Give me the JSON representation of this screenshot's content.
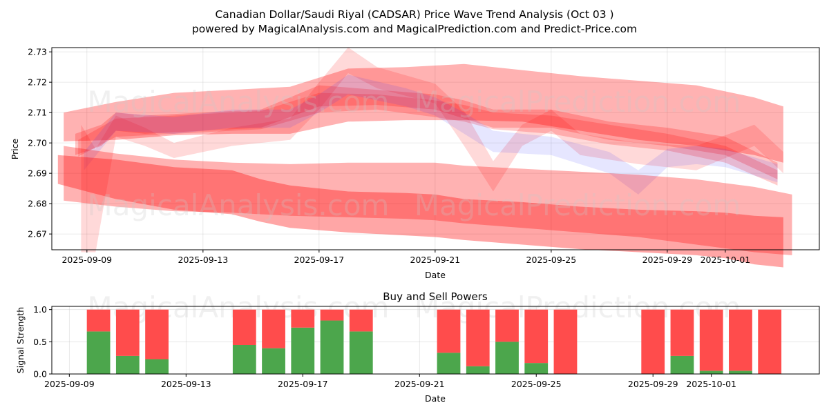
{
  "figure": {
    "title_line1": "Canadian Dollar/Saudi Riyal (CADSAR) Price Wave Trend Analysis (Oct 03 )",
    "title_line2": "powered by MagicalAnalysis.com and MagicalPrediction.com and Predict-Price.com",
    "watermarks": [
      "MagicalAnalysis.com",
      "MagicalPrediction.com"
    ]
  },
  "chart_data": [
    {
      "type": "area",
      "name": "price-wave-chart",
      "title": "",
      "xlabel": "Date",
      "ylabel": "Price",
      "ylim": [
        2.6648,
        2.7314
      ],
      "xlim_days_from_start": [
        -1.21,
        25.24
      ],
      "start_date": "2025-09-09",
      "yticks": [
        2.67,
        2.68,
        2.69,
        2.7,
        2.71,
        2.72,
        2.73
      ],
      "ytick_labels": [
        "2.67",
        "2.68",
        "2.69",
        "2.70",
        "2.71",
        "2.72",
        "2.73"
      ],
      "xtick_days": [
        0,
        4,
        8,
        12,
        16,
        20,
        22
      ],
      "xtick_labels": [
        "2025-09-09",
        "2025-09-13",
        "2025-09-17",
        "2025-09-21",
        "2025-09-25",
        "2025-09-29",
        "2025-10-01"
      ],
      "grid": true,
      "colors": {
        "red_band": "#ff0000",
        "blue_band": "#3333ff"
      },
      "series": [
        {
          "name": "upper-wide-band",
          "color": "red",
          "opacity": 0.3,
          "x": [
            -0.8,
            1,
            3,
            5,
            7,
            9,
            11,
            13,
            15,
            17,
            19,
            21,
            23,
            24
          ],
          "upper": [
            2.71,
            2.7135,
            2.7165,
            2.7175,
            2.7185,
            2.7245,
            2.725,
            2.726,
            2.724,
            2.722,
            2.7205,
            2.719,
            2.715,
            2.712
          ],
          "lower": [
            2.7005,
            2.701,
            2.7025,
            2.703,
            2.703,
            2.707,
            2.7075,
            2.7075,
            2.707,
            2.704,
            2.701,
            2.699,
            2.696,
            2.6935
          ]
        },
        {
          "name": "core-band-1",
          "color": "red",
          "opacity": 0.22,
          "x": [
            -0.4,
            0.5,
            1,
            2,
            4,
            6,
            8,
            10,
            12,
            13,
            14,
            16,
            18,
            20,
            22,
            23.8
          ],
          "upper": [
            2.703,
            2.706,
            2.71,
            2.709,
            2.71,
            2.711,
            2.719,
            2.7175,
            2.716,
            2.714,
            2.711,
            2.711,
            2.707,
            2.705,
            2.702,
            2.6935
          ],
          "lower": [
            2.696,
            2.699,
            2.704,
            2.703,
            2.704,
            2.705,
            2.712,
            2.7125,
            2.711,
            2.708,
            2.705,
            2.705,
            2.701,
            2.699,
            2.696,
            2.688
          ]
        },
        {
          "name": "core-band-2",
          "color": "red",
          "opacity": 0.2,
          "x": [
            -0.3,
            1,
            2,
            4,
            6,
            8,
            10,
            12,
            13,
            14,
            16,
            18,
            20,
            22,
            23.8
          ],
          "upper": [
            2.701,
            2.708,
            2.7085,
            2.7095,
            2.7105,
            2.7165,
            2.716,
            2.714,
            2.7125,
            2.71,
            2.709,
            2.706,
            2.703,
            2.699,
            2.691
          ],
          "lower": [
            2.6955,
            2.702,
            2.7025,
            2.7035,
            2.7045,
            2.71,
            2.711,
            2.7085,
            2.707,
            2.7045,
            2.703,
            2.6995,
            2.6975,
            2.6935,
            2.686
          ]
        },
        {
          "name": "volatile-band",
          "color": "red",
          "opacity": 0.15,
          "x": [
            -0.2,
            0.3,
            1,
            2,
            3,
            5,
            7,
            8,
            9,
            10,
            12,
            13,
            14,
            15,
            16,
            17,
            19,
            21,
            23,
            24
          ],
          "upper": [
            2.706,
            2.698,
            2.709,
            2.705,
            2.7,
            2.705,
            2.708,
            2.72,
            2.7315,
            2.725,
            2.7195,
            2.7105,
            2.694,
            2.706,
            2.711,
            2.703,
            2.7,
            2.699,
            2.706,
            2.697
          ],
          "lower": [
            2.664,
            2.664,
            2.702,
            2.699,
            2.695,
            2.699,
            2.701,
            2.711,
            2.723,
            2.718,
            2.713,
            2.699,
            2.684,
            2.699,
            2.704,
            2.696,
            2.693,
            2.691,
            2.699,
            2.69
          ]
        },
        {
          "name": "blue-band",
          "color": "blue",
          "opacity": 0.12,
          "x": [
            -0.1,
            1,
            3,
            5,
            7,
            8,
            9,
            11,
            12,
            13,
            14,
            16,
            18,
            19,
            20,
            21,
            22,
            23.8
          ],
          "upper": [
            2.697,
            2.71,
            2.7085,
            2.711,
            2.711,
            2.716,
            2.7225,
            2.718,
            2.715,
            2.71,
            2.704,
            2.702,
            2.697,
            2.691,
            2.698,
            2.699,
            2.698,
            2.693
          ],
          "lower": [
            2.691,
            2.704,
            2.703,
            2.705,
            2.705,
            2.71,
            2.716,
            2.712,
            2.709,
            2.703,
            2.697,
            2.696,
            2.69,
            2.683,
            2.692,
            2.693,
            2.692,
            2.687
          ]
        },
        {
          "name": "lower-mid-band",
          "color": "red",
          "opacity": 0.3,
          "x": [
            -0.8,
            1,
            3,
            5,
            7,
            9,
            11,
            12,
            13,
            15,
            17,
            19,
            21,
            23,
            24.3
          ],
          "upper": [
            2.699,
            2.6965,
            2.6945,
            2.6935,
            2.693,
            2.6935,
            2.6935,
            2.6935,
            2.6925,
            2.6915,
            2.6905,
            2.6895,
            2.688,
            2.6855,
            2.683
          ],
          "lower": [
            2.681,
            2.679,
            2.6775,
            2.677,
            2.676,
            2.6755,
            2.675,
            2.6745,
            2.6735,
            2.672,
            2.6705,
            2.669,
            2.6665,
            2.664,
            2.663
          ]
        },
        {
          "name": "lower-dark-band",
          "color": "red",
          "opacity": 0.35,
          "x": [
            -1.0,
            1,
            3,
            5,
            6,
            7,
            9,
            11,
            12,
            13,
            15,
            17,
            19,
            21,
            22,
            23,
            24
          ],
          "upper": [
            2.696,
            2.6945,
            2.692,
            2.691,
            2.688,
            2.686,
            2.684,
            2.6835,
            2.683,
            2.6815,
            2.6805,
            2.679,
            2.678,
            2.6775,
            2.677,
            2.676,
            2.6755
          ],
          "lower": [
            2.6865,
            2.6815,
            2.678,
            2.6765,
            2.674,
            2.672,
            2.6705,
            2.6695,
            2.669,
            2.668,
            2.6665,
            2.665,
            2.664,
            2.663,
            2.662,
            2.66,
            2.659
          ]
        }
      ]
    },
    {
      "type": "bar",
      "name": "buy-sell-powers-chart",
      "title": "Buy and Sell Powers",
      "xlabel": "Date",
      "ylabel": "Signal Strength",
      "ylim": [
        0,
        1.05
      ],
      "yticks": [
        0.0,
        0.5,
        1.0
      ],
      "ytick_labels": [
        "0.0",
        "0.5",
        "1.0"
      ],
      "xtick_labels": [
        "2025-09-09",
        "2025-09-13",
        "2025-09-17",
        "2025-09-21",
        "2025-09-25",
        "2025-09-29",
        "2025-10-01"
      ],
      "xtick_days": [
        0,
        4,
        8,
        12,
        16,
        20,
        22
      ],
      "xlim_days_from_start": [
        -0.6,
        25.7
      ],
      "grid": true,
      "colors": {
        "buy": "#4ca64c",
        "sell": "#ff4c4c"
      },
      "categories": [
        "2025-09-10",
        "2025-09-11",
        "2025-09-12",
        "2025-09-15",
        "2025-09-16",
        "2025-09-17",
        "2025-09-18",
        "2025-09-19",
        "2025-09-22",
        "2025-09-23",
        "2025-09-24",
        "2025-09-25",
        "2025-09-26",
        "2025-09-29",
        "2025-09-30",
        "2025-10-01",
        "2025-10-02",
        "2025-10-03"
      ],
      "category_days": [
        1,
        2,
        3,
        6,
        7,
        8,
        9,
        10,
        13,
        14,
        15,
        16,
        17,
        20,
        21,
        22,
        23,
        24
      ],
      "series": [
        {
          "name": "Buy",
          "values": [
            0.66,
            0.28,
            0.23,
            0.45,
            0.4,
            0.72,
            0.83,
            0.66,
            0.33,
            0.12,
            0.5,
            0.17,
            0.0,
            0.0,
            0.28,
            0.05,
            0.05,
            0.0
          ]
        },
        {
          "name": "Sell",
          "values": [
            0.34,
            0.72,
            0.77,
            0.55,
            0.6,
            0.28,
            0.17,
            0.34,
            0.67,
            0.88,
            0.5,
            0.83,
            1.0,
            1.0,
            0.72,
            0.95,
            0.95,
            1.0
          ]
        }
      ]
    }
  ]
}
